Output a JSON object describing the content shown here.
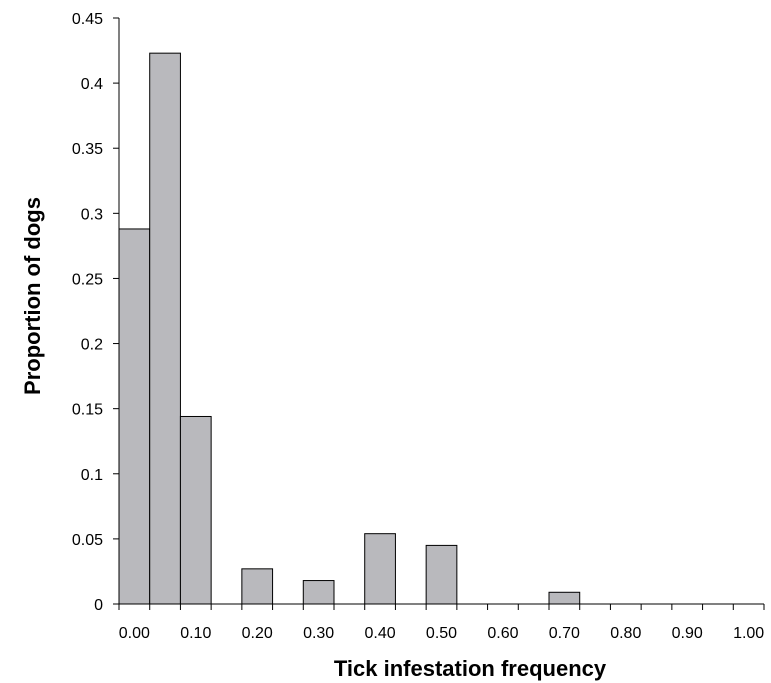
{
  "chart_data": {
    "type": "bar",
    "title": "",
    "xlabel": "Tick infestation frequency",
    "ylabel": "Proportion of dogs",
    "ylim": [
      0,
      0.45
    ],
    "yticks": [
      "0",
      "0.05",
      "0.1",
      "0.15",
      "0.2",
      "0.25",
      "0.3",
      "0.35",
      "0.4",
      "0.45"
    ],
    "xticks": [
      "0.00",
      "0.10",
      "0.20",
      "0.30",
      "0.40",
      "0.50",
      "0.60",
      "0.70",
      "0.80",
      "0.90",
      "1.00"
    ],
    "bin_width": 0.05,
    "categories": [
      "0.00",
      "0.05",
      "0.10",
      "0.15",
      "0.20",
      "0.25",
      "0.30",
      "0.35",
      "0.40",
      "0.45",
      "0.50",
      "0.55",
      "0.60",
      "0.65",
      "0.70",
      "0.75",
      "0.80",
      "0.85",
      "0.90",
      "0.95"
    ],
    "values": [
      0.288,
      0.423,
      0.144,
      0,
      0.027,
      0,
      0.018,
      0,
      0.054,
      0,
      0.045,
      0,
      0,
      0,
      0.009,
      0,
      0,
      0,
      0,
      0
    ],
    "bar_color": "#b9b9bd",
    "bar_edge_color": "#000000",
    "grid": false,
    "legend": "none"
  }
}
